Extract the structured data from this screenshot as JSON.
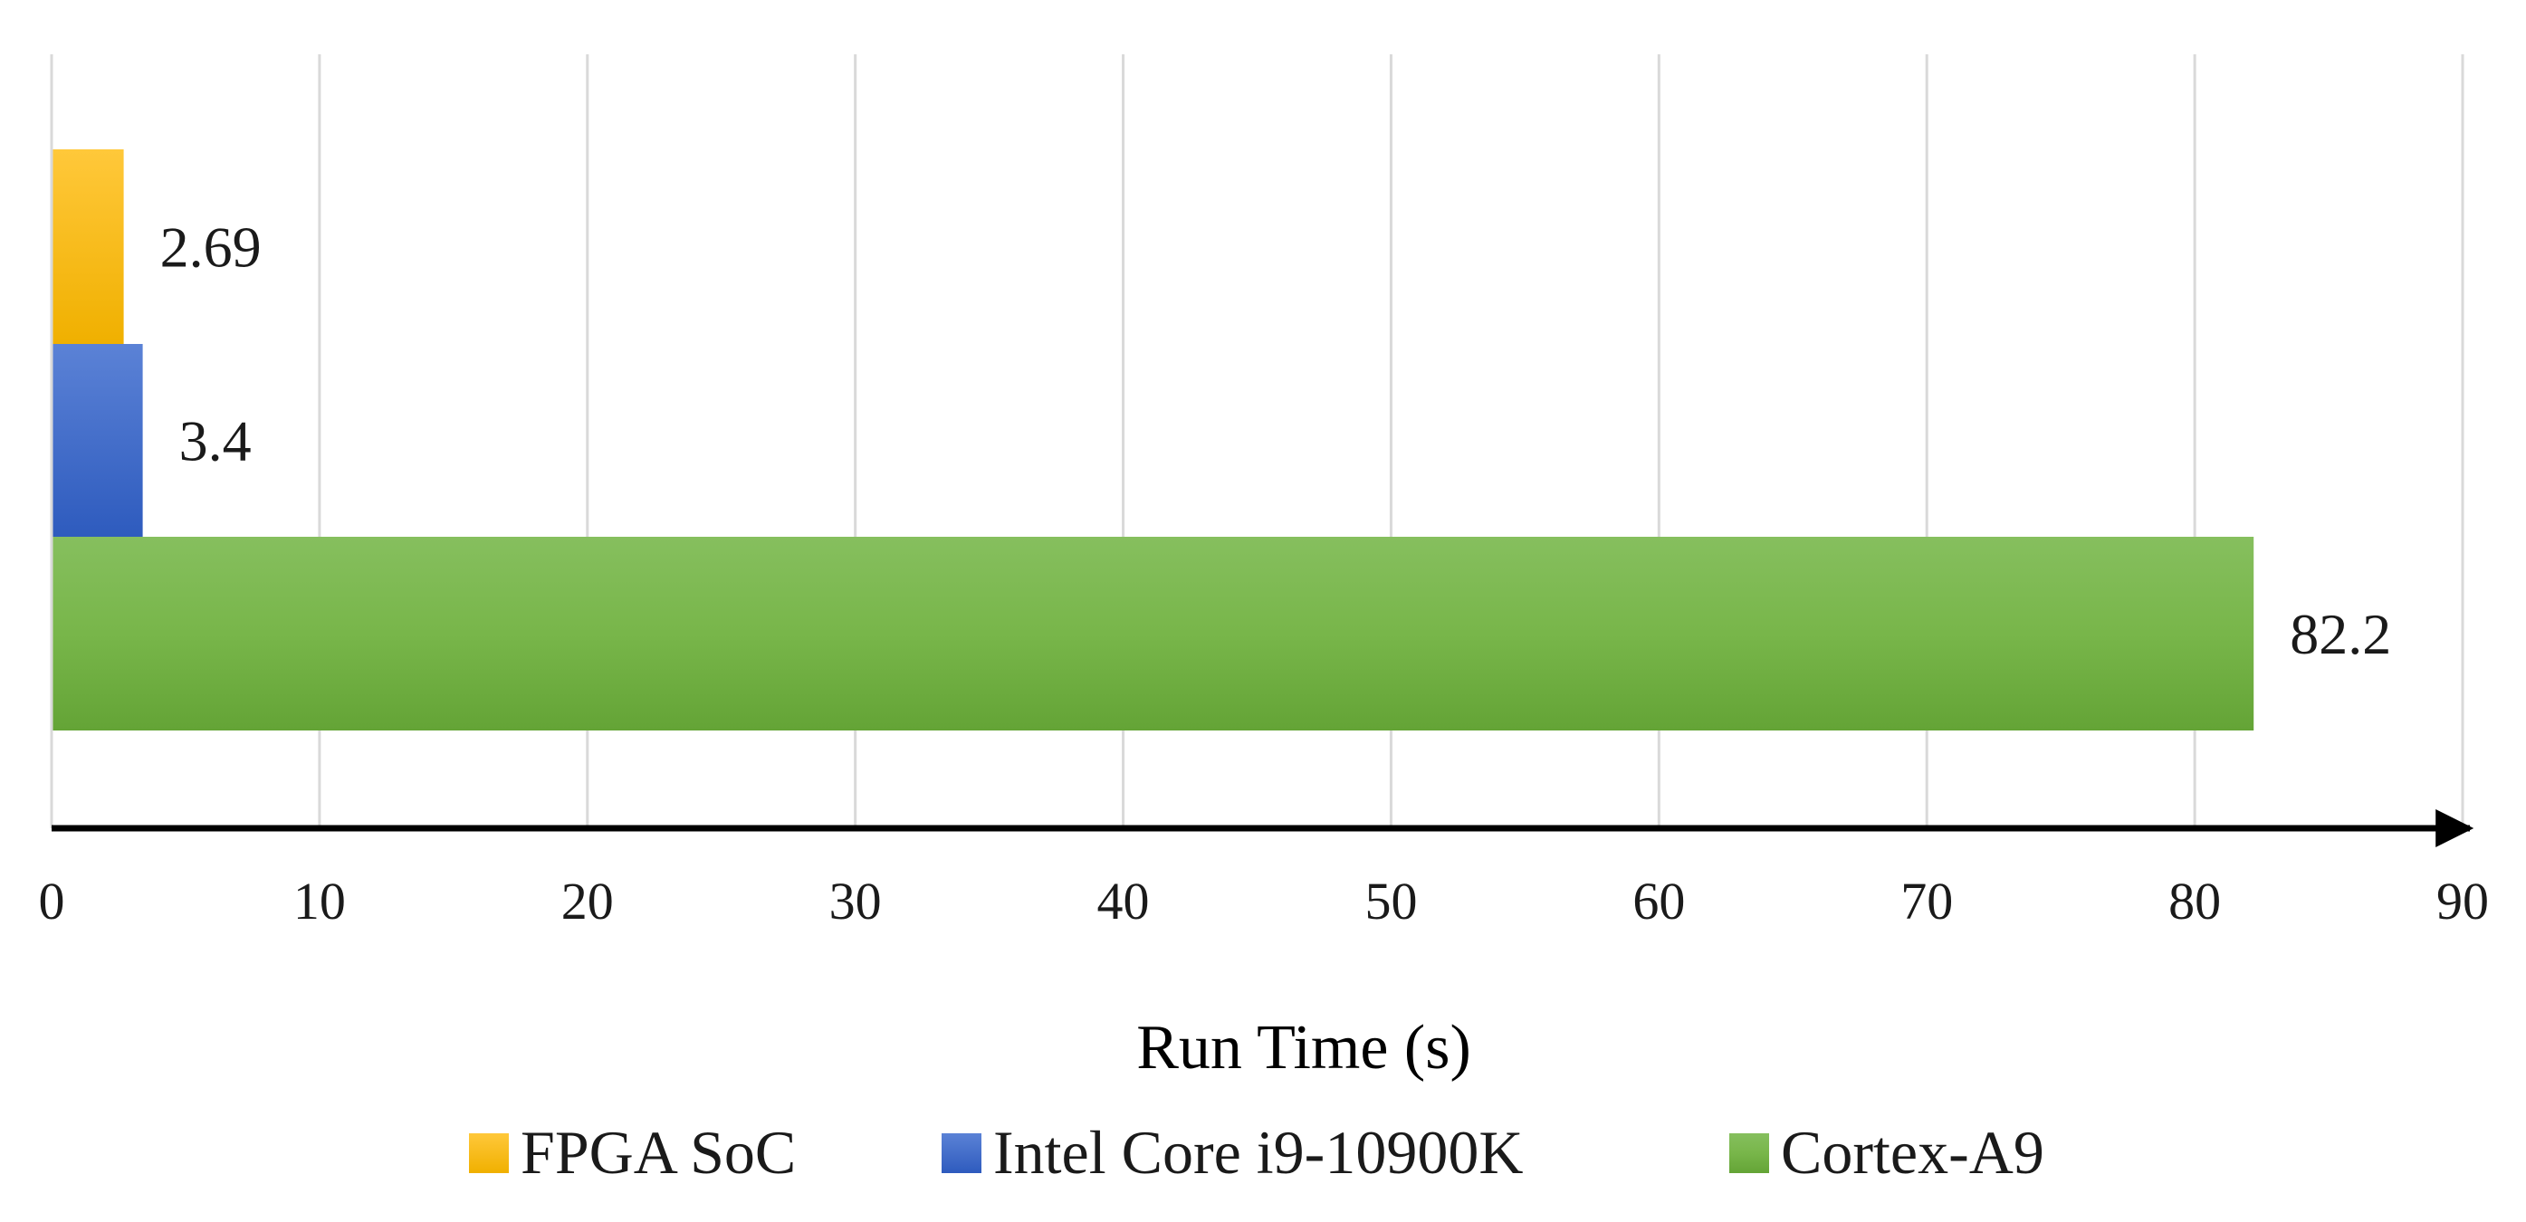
{
  "chart_data": {
    "type": "bar",
    "orientation": "horizontal",
    "title": "",
    "xlabel": "Run Time (s)",
    "ylabel": "",
    "xlim": [
      0,
      90
    ],
    "x_ticks": [
      0,
      10,
      20,
      30,
      40,
      50,
      60,
      70,
      80,
      90
    ],
    "grid": "vertical",
    "legend_position": "bottom",
    "series": [
      {
        "name": "FPGA SoC",
        "value": 2.69,
        "label": "2.69",
        "color": "#F5B800"
      },
      {
        "name": "Intel Core i9-10900K",
        "value": 3.4,
        "label": "3.4",
        "color": "#3A66C4"
      },
      {
        "name": "Cortex-A9",
        "value": 82.2,
        "label": "82.2",
        "color": "#6FAF45"
      }
    ]
  }
}
